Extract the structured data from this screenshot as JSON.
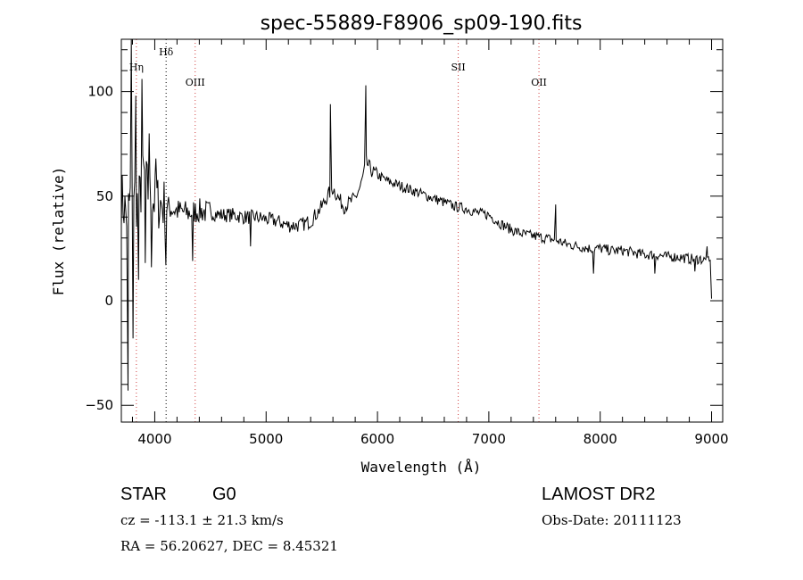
{
  "chart_data": {
    "type": "line",
    "title": "spec-55889-F8906_sp09-190.fits",
    "xlabel": "Wavelength (Å)",
    "ylabel": "Flux (relative)",
    "xlim": [
      3700,
      9100
    ],
    "ylim": [
      -58,
      125
    ],
    "x_ticks": [
      4000,
      5000,
      6000,
      7000,
      8000,
      9000
    ],
    "y_ticks": [
      -50,
      0,
      50,
      100
    ],
    "grid": false,
    "spectral_lines": [
      {
        "label": "Hη",
        "wavelength": 3835,
        "color": "#d04040"
      },
      {
        "label": "Hδ",
        "wavelength": 4102,
        "color": "#000000"
      },
      {
        "label": "OIII",
        "wavelength": 4363,
        "color": "#d04040"
      },
      {
        "label": "SII",
        "wavelength": 6725,
        "color": "#d04040"
      },
      {
        "label": "OII",
        "wavelength": 7450,
        "color": "#d04040"
      }
    ],
    "series": [
      {
        "color": "#000000",
        "x": [
          3700,
          3750,
          3800,
          3850,
          3900,
          3950,
          4000,
          4100,
          4200,
          4300,
          4400,
          4500,
          4600,
          4700,
          4800,
          4900,
          5000,
          5100,
          5200,
          5300,
          5400,
          5500,
          5550,
          5600,
          5650,
          5700,
          5750,
          5800,
          5850,
          5900,
          5950,
          6000,
          6100,
          6200,
          6300,
          6400,
          6500,
          6600,
          6700,
          6800,
          6900,
          7000,
          7100,
          7200,
          7300,
          7400,
          7500,
          7600,
          7700,
          7800,
          7900,
          8000,
          8100,
          8200,
          8300,
          8400,
          8500,
          8600,
          8700,
          8800,
          8900,
          8950,
          9000
        ],
        "y": [
          50,
          40,
          55,
          45,
          60,
          50,
          48,
          45,
          43,
          42,
          43,
          42,
          41,
          41,
          40,
          40,
          39,
          38,
          36,
          36,
          38,
          45,
          50,
          54,
          49,
          45,
          47,
          49,
          55,
          66,
          62,
          60,
          57,
          55,
          53,
          51,
          49,
          47,
          45,
          44,
          42,
          41,
          37,
          34,
          32,
          31,
          30,
          29,
          27,
          26,
          25,
          25,
          24,
          24,
          23,
          22,
          22,
          21,
          21,
          20,
          20,
          19,
          18
        ]
      }
    ],
    "features": [
      {
        "x": 3760,
        "y": -43
      },
      {
        "x": 3790,
        "y": 125
      },
      {
        "x": 3805,
        "y": -18
      },
      {
        "x": 3830,
        "y": 98
      },
      {
        "x": 3855,
        "y": 10
      },
      {
        "x": 3885,
        "y": 106
      },
      {
        "x": 3915,
        "y": 18
      },
      {
        "x": 3950,
        "y": 80
      },
      {
        "x": 3970,
        "y": 16
      },
      {
        "x": 4010,
        "y": 68
      },
      {
        "x": 4100,
        "y": 17
      },
      {
        "x": 4340,
        "y": 19
      },
      {
        "x": 4860,
        "y": 26
      },
      {
        "x": 5577,
        "y": 94
      },
      {
        "x": 5895,
        "y": 103
      },
      {
        "x": 7600,
        "y": 46
      },
      {
        "x": 7940,
        "y": 13
      },
      {
        "x": 8490,
        "y": 13
      },
      {
        "x": 8850,
        "y": 14
      },
      {
        "x": 8960,
        "y": 26
      },
      {
        "x": 9000,
        "y": 1
      }
    ]
  },
  "info": {
    "object_class": "STAR",
    "subclass": "G0",
    "redshift": "cz = -113.1 ± 21.3 km/s",
    "coords": "RA =  56.20627, DEC =   8.45321",
    "survey": "LAMOST DR2",
    "obs_date": "Obs-Date: 20111123"
  }
}
